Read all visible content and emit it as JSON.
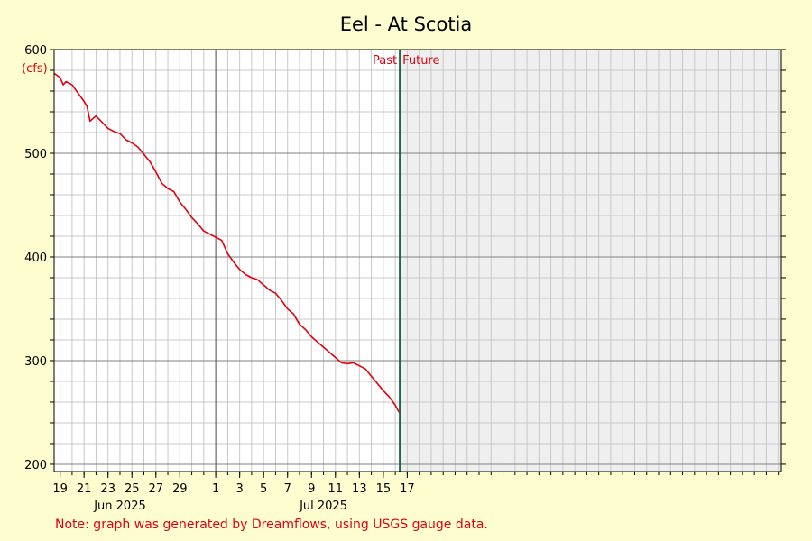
{
  "chart_data": {
    "type": "line",
    "title": "Eel - At Scotia",
    "ylabel": "(cfs)",
    "xlabel": "",
    "ylim": [
      193,
      600
    ],
    "y_ticks": [
      200,
      300,
      400,
      500,
      600
    ],
    "x_range_days": [
      "2025-05-18T12:00",
      "2025-07-18T06:00"
    ],
    "x_tick_labels": [
      {
        "date": "2025-05-19",
        "label": "19"
      },
      {
        "date": "2025-05-21",
        "label": "21"
      },
      {
        "date": "2025-05-23",
        "label": "23"
      },
      {
        "date": "2025-05-25",
        "label": "25"
      },
      {
        "date": "2025-05-27",
        "label": "27"
      },
      {
        "date": "2025-05-29",
        "label": "29"
      },
      {
        "date": "2025-06-01",
        "label": "1"
      },
      {
        "date": "2025-06-03",
        "label": "3"
      },
      {
        "date": "2025-06-05",
        "label": "5"
      },
      {
        "date": "2025-06-07",
        "label": "7"
      },
      {
        "date": "2025-06-09",
        "label": "9"
      },
      {
        "date": "2025-06-11",
        "label": "11"
      },
      {
        "date": "2025-06-13",
        "label": "13"
      },
      {
        "date": "2025-06-15",
        "label": "15"
      },
      {
        "date": "2025-06-17",
        "label": "17"
      }
    ],
    "month_labels": [
      {
        "date": "2025-05-24",
        "label": "Jun 2025"
      },
      {
        "date": "2025-06-10",
        "label": "Jul 2025"
      }
    ],
    "month_divider": "2025-06-01",
    "now": "2025-06-16T09:00",
    "past_label": "Past",
    "future_label": "Future",
    "note": "Note: graph was generated by Dreamflows, using USGS gauge data.",
    "grid": true,
    "colors": {
      "line": "#e0000f",
      "now_line": "#1a6b4a",
      "future_fill": "#efefef",
      "background": "#fdfdd0",
      "plot_bg": "#ffffff",
      "grid": "#c8c8c8",
      "major_grid": "#808080"
    },
    "series": [
      {
        "values": [
          [
            "2025-05-18T12:00",
            577
          ],
          [
            "2025-05-19T00:00",
            573
          ],
          [
            "2025-05-19T06:00",
            566
          ],
          [
            "2025-05-19T12:00",
            569
          ],
          [
            "2025-05-20T00:00",
            566
          ],
          [
            "2025-05-20T12:00",
            558
          ],
          [
            "2025-05-21T00:00",
            550
          ],
          [
            "2025-05-21T06:00",
            545
          ],
          [
            "2025-05-21T12:00",
            531
          ],
          [
            "2025-05-22T00:00",
            536
          ],
          [
            "2025-05-22T12:00",
            530
          ],
          [
            "2025-05-23T00:00",
            524
          ],
          [
            "2025-05-23T12:00",
            521
          ],
          [
            "2025-05-24T00:00",
            519
          ],
          [
            "2025-05-24T12:00",
            513
          ],
          [
            "2025-05-25T00:00",
            510
          ],
          [
            "2025-05-25T12:00",
            506
          ],
          [
            "2025-05-26T00:00",
            499
          ],
          [
            "2025-05-26T12:00",
            492
          ],
          [
            "2025-05-27T00:00",
            482
          ],
          [
            "2025-05-27T12:00",
            471
          ],
          [
            "2025-05-28T00:00",
            466
          ],
          [
            "2025-05-28T12:00",
            463
          ],
          [
            "2025-05-29T00:00",
            453
          ],
          [
            "2025-05-29T12:00",
            446
          ],
          [
            "2025-05-30T00:00",
            438
          ],
          [
            "2025-05-30T12:00",
            432
          ],
          [
            "2025-05-31T00:00",
            425
          ],
          [
            "2025-06-01T00:00",
            419
          ],
          [
            "2025-06-01T12:00",
            416
          ],
          [
            "2025-06-02T00:00",
            403
          ],
          [
            "2025-06-02T12:00",
            395
          ],
          [
            "2025-06-03T00:00",
            388
          ],
          [
            "2025-06-03T12:00",
            383
          ],
          [
            "2025-06-04T00:00",
            380
          ],
          [
            "2025-06-04T12:00",
            378
          ],
          [
            "2025-06-05T00:00",
            373
          ],
          [
            "2025-06-05T12:00",
            368
          ],
          [
            "2025-06-06T00:00",
            365
          ],
          [
            "2025-06-06T12:00",
            358
          ],
          [
            "2025-06-07T00:00",
            350
          ],
          [
            "2025-06-07T12:00",
            345
          ],
          [
            "2025-06-08T00:00",
            335
          ],
          [
            "2025-06-08T12:00",
            330
          ],
          [
            "2025-06-09T00:00",
            323
          ],
          [
            "2025-06-09T12:00",
            318
          ],
          [
            "2025-06-10T00:00",
            313
          ],
          [
            "2025-06-10T12:00",
            308
          ],
          [
            "2025-06-11T00:00",
            303
          ],
          [
            "2025-06-11T12:00",
            298
          ],
          [
            "2025-06-12T00:00",
            297
          ],
          [
            "2025-06-12T12:00",
            298
          ],
          [
            "2025-06-13T00:00",
            295
          ],
          [
            "2025-06-13T12:00",
            292
          ],
          [
            "2025-06-14T00:00",
            285
          ],
          [
            "2025-06-14T12:00",
            278
          ],
          [
            "2025-06-15T00:00",
            271
          ],
          [
            "2025-06-15T12:00",
            265
          ],
          [
            "2025-06-16T00:00",
            257
          ],
          [
            "2025-06-16T09:00",
            249
          ]
        ]
      }
    ]
  }
}
